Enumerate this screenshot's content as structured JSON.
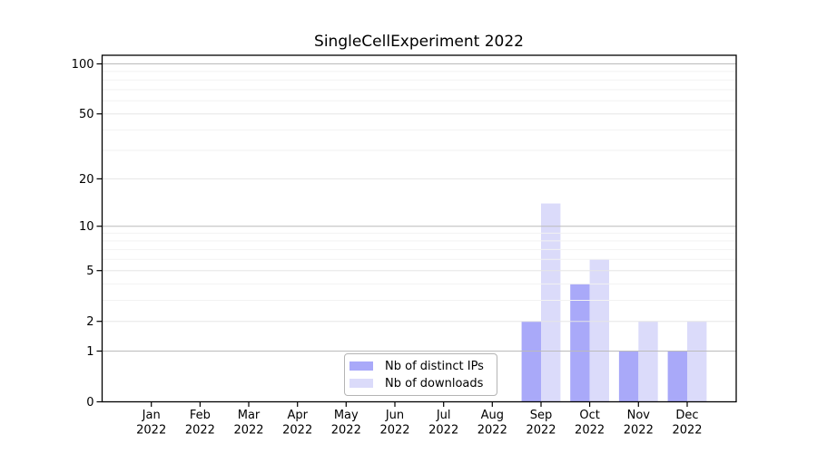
{
  "title": "SingleCellExperiment 2022",
  "chart_data": {
    "type": "bar",
    "title": "SingleCellExperiment 2022",
    "categories": [
      "Jan 2022",
      "Feb 2022",
      "Mar 2022",
      "Apr 2022",
      "May 2022",
      "Jun 2022",
      "Jul 2022",
      "Aug 2022",
      "Sep 2022",
      "Oct 2022",
      "Nov 2022",
      "Dec 2022"
    ],
    "series": [
      {
        "name": "Nb of distinct IPs",
        "color": "#a9a9f9",
        "values": [
          0,
          0,
          0,
          0,
          0,
          0,
          0,
          0,
          2,
          4,
          1,
          1
        ]
      },
      {
        "name": "Nb of downloads",
        "color": "#dbdbfa",
        "values": [
          0,
          0,
          0,
          0,
          0,
          0,
          0,
          0,
          14,
          6,
          2,
          2
        ]
      }
    ],
    "y_axis": {
      "scale": "log10(value+1)",
      "major_ticks": [
        0,
        1,
        2,
        5,
        10,
        20,
        50,
        100
      ],
      "minor_ticks": [
        3,
        4,
        6,
        7,
        8,
        9,
        30,
        40,
        60,
        70,
        80,
        90
      ],
      "ylim": [
        0,
        110
      ]
    },
    "grid": "horizontal",
    "legend_position": "inside-bottom-center",
    "colors": {
      "grid_power10": "#bbbbbb",
      "grid_major": "#e6e6e6",
      "grid_minor": "#f2f2f2",
      "axis": "#000000",
      "text": "#000000"
    }
  }
}
